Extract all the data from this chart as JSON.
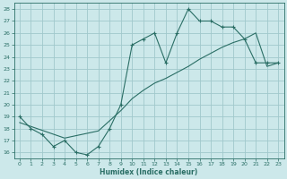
{
  "xlabel": "Humidex (Indice chaleur)",
  "ylabel": "",
  "bg_color": "#cce8ea",
  "line_color": "#2a6e65",
  "grid_color": "#a0c8cc",
  "xlim": [
    -0.5,
    23.5
  ],
  "ylim": [
    15.5,
    28.5
  ],
  "yticks": [
    16,
    17,
    18,
    19,
    20,
    21,
    22,
    23,
    24,
    25,
    26,
    27,
    28
  ],
  "xticks": [
    0,
    1,
    2,
    3,
    4,
    5,
    6,
    7,
    8,
    9,
    10,
    11,
    12,
    13,
    14,
    15,
    16,
    17,
    18,
    19,
    20,
    21,
    22,
    23
  ],
  "curve1_x": [
    0,
    1,
    2,
    3,
    4,
    5,
    6,
    7,
    8,
    9,
    10,
    11,
    12,
    13,
    14,
    15,
    16,
    17,
    18,
    19,
    20,
    21,
    22,
    23
  ],
  "curve1_y": [
    19.0,
    18.0,
    17.5,
    16.5,
    17.0,
    16.0,
    15.8,
    16.5,
    18.0,
    20.0,
    25.0,
    25.5,
    26.0,
    23.5,
    26.0,
    28.0,
    27.0,
    27.0,
    26.5,
    26.5,
    25.5,
    23.5,
    23.5,
    23.5
  ],
  "curve2_x": [
    0,
    4,
    7,
    9,
    10,
    11,
    12,
    13,
    14,
    15,
    16,
    17,
    18,
    19,
    20,
    21,
    22,
    23
  ],
  "curve2_y": [
    18.5,
    17.2,
    17.8,
    19.5,
    20.5,
    21.2,
    21.8,
    22.2,
    22.7,
    23.2,
    23.8,
    24.3,
    24.8,
    25.2,
    25.5,
    26.0,
    23.2,
    23.5
  ]
}
